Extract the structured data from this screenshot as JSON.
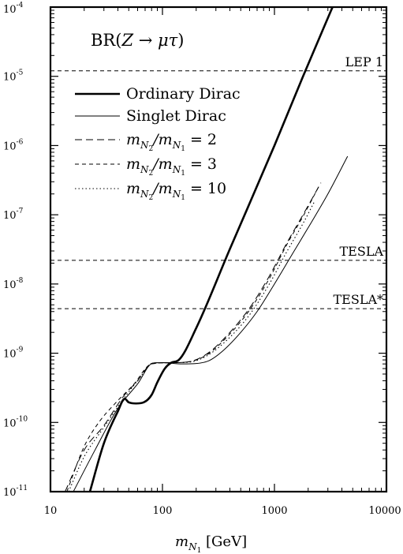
{
  "chart_data": {
    "type": "line",
    "title": "BR(Z → μτ)",
    "xlabel": "m_{N_1} [GeV]",
    "ylabel": "",
    "x_scale": "log",
    "y_scale": "log",
    "xlim": [
      10,
      10000
    ],
    "ylim": [
      1e-11,
      0.0001
    ],
    "grid": false,
    "legend_position": "top-left",
    "x_ticks": [
      {
        "value": 10,
        "label": "10"
      },
      {
        "value": 100,
        "label": "100"
      },
      {
        "value": 1000,
        "label": "1000"
      },
      {
        "value": 10000,
        "label": "10000"
      }
    ],
    "y_ticks": [
      {
        "value": 1e-11,
        "mant": "10",
        "exp": "-11"
      },
      {
        "value": 1e-10,
        "mant": "10",
        "exp": "-10"
      },
      {
        "value": 1e-09,
        "mant": "10",
        "exp": "-9"
      },
      {
        "value": 1e-08,
        "mant": "10",
        "exp": "-8"
      },
      {
        "value": 1e-07,
        "mant": "10",
        "exp": "-7"
      },
      {
        "value": 1e-06,
        "mant": "10",
        "exp": "-6"
      },
      {
        "value": 1e-05,
        "mant": "10",
        "exp": "-5"
      },
      {
        "value": 0.0001,
        "mant": "10",
        "exp": "-4"
      }
    ],
    "reference_lines": [
      {
        "label": "LEP 1",
        "y": 1.2e-05
      },
      {
        "label": "TESLA",
        "y": 2.2e-08
      },
      {
        "label": "TESLA*",
        "y": 4.4e-09
      }
    ],
    "series": [
      {
        "name": "Ordinary Dirac",
        "style": "thick-solid",
        "points": [
          [
            22.5,
            1e-11
          ],
          [
            30,
            5e-11
          ],
          [
            40,
            1.45e-10
          ],
          [
            46,
            2.2e-10
          ],
          [
            50,
            1.95e-10
          ],
          [
            58,
            1.88e-10
          ],
          [
            68,
            1.95e-10
          ],
          [
            80,
            2.5e-10
          ],
          [
            90,
            3.8e-10
          ],
          [
            105,
            6e-10
          ],
          [
            120,
            7.3e-10
          ],
          [
            140,
            8e-10
          ],
          [
            200,
            2.3e-09
          ],
          [
            400,
            3.2e-08
          ],
          [
            1000,
            1e-06
          ],
          [
            1800,
            1e-05
          ],
          [
            3300,
            0.0001
          ]
        ]
      },
      {
        "name": "Singlet Dirac",
        "style": "thin-solid",
        "points": [
          [
            16,
            1e-11
          ],
          [
            25,
            4e-11
          ],
          [
            40,
            1.6e-10
          ],
          [
            60,
            3.6e-10
          ],
          [
            82,
            7.2e-10
          ],
          [
            100,
            7.3e-10
          ],
          [
            150,
            7e-10
          ],
          [
            200,
            7.1e-10
          ],
          [
            260,
            7.8e-10
          ],
          [
            350,
            1.1e-09
          ],
          [
            500,
            2e-09
          ],
          [
            700,
            4e-09
          ],
          [
            1000,
            1e-08
          ],
          [
            1500,
            3e-08
          ],
          [
            2000,
            6.5e-08
          ],
          [
            3000,
            2e-07
          ],
          [
            4500,
            7e-07
          ]
        ]
      },
      {
        "name": "m_{N_2}/m_{N_1} = 2",
        "style": "long-dash",
        "points": [
          [
            13.5,
            1e-11
          ],
          [
            20,
            4e-11
          ],
          [
            30,
            9e-11
          ],
          [
            45,
            2.4e-10
          ],
          [
            60,
            4e-10
          ],
          [
            82,
            7.2e-10
          ],
          [
            120,
            7.3e-10
          ],
          [
            170,
            7.5e-10
          ],
          [
            250,
            9.8e-10
          ],
          [
            400,
            2e-09
          ],
          [
            600,
            4.5e-09
          ],
          [
            900,
            1.3e-08
          ],
          [
            1300,
            4e-08
          ],
          [
            1800,
            1e-07
          ],
          [
            2600,
            2.9e-07
          ]
        ]
      },
      {
        "name": "m_{N_2}/m_{N_1} = 3",
        "style": "short-dash",
        "points": [
          [
            14,
            1e-11
          ],
          [
            20,
            4.5e-11
          ],
          [
            27,
            1e-10
          ],
          [
            38,
            1.9e-10
          ],
          [
            55,
            3.5e-10
          ],
          [
            80,
            7e-10
          ],
          [
            120,
            7.3e-10
          ],
          [
            170,
            7.5e-10
          ],
          [
            250,
            9.5e-10
          ],
          [
            400,
            1.9e-09
          ],
          [
            600,
            4.2e-09
          ],
          [
            900,
            1.2e-08
          ],
          [
            1300,
            3.8e-08
          ],
          [
            1800,
            9.5e-08
          ],
          [
            2500,
            2.6e-07
          ]
        ]
      },
      {
        "name": "m_{N_2}/m_{N_1} = 10",
        "style": "dotted",
        "points": [
          [
            14.5,
            1e-11
          ],
          [
            20,
            3.2e-11
          ],
          [
            30,
            8.5e-11
          ],
          [
            45,
            2.2e-10
          ],
          [
            60,
            4e-10
          ],
          [
            82,
            7.1e-10
          ],
          [
            120,
            7.3e-10
          ],
          [
            170,
            7.4e-10
          ],
          [
            250,
            9.2e-10
          ],
          [
            400,
            1.7e-09
          ],
          [
            600,
            3.6e-09
          ],
          [
            900,
            1e-08
          ],
          [
            1300,
            3e-08
          ],
          [
            1800,
            7.5e-08
          ],
          [
            2300,
            1.6e-07
          ]
        ]
      }
    ],
    "legend": [
      {
        "text": "Ordinary Dirac",
        "style": "thick-solid"
      },
      {
        "text": "Singlet Dirac",
        "style": "thin-solid"
      },
      {
        "text_parts": [
          "m",
          "N",
          "2",
          "/m",
          "N",
          "1",
          " = 2"
        ],
        "style": "long-dash"
      },
      {
        "text_parts": [
          "m",
          "N",
          "2",
          "/m",
          "N",
          "1",
          " = 3"
        ],
        "style": "short-dash"
      },
      {
        "text_parts": [
          "m",
          "N",
          "2",
          "/m",
          "N",
          "1",
          " = 10"
        ],
        "style": "dotted"
      }
    ],
    "title_parts": [
      "BR(",
      "Z",
      " → ",
      "μτ",
      ")"
    ],
    "xlabel_parts": [
      "m",
      "N",
      "1",
      " [GeV]"
    ]
  }
}
